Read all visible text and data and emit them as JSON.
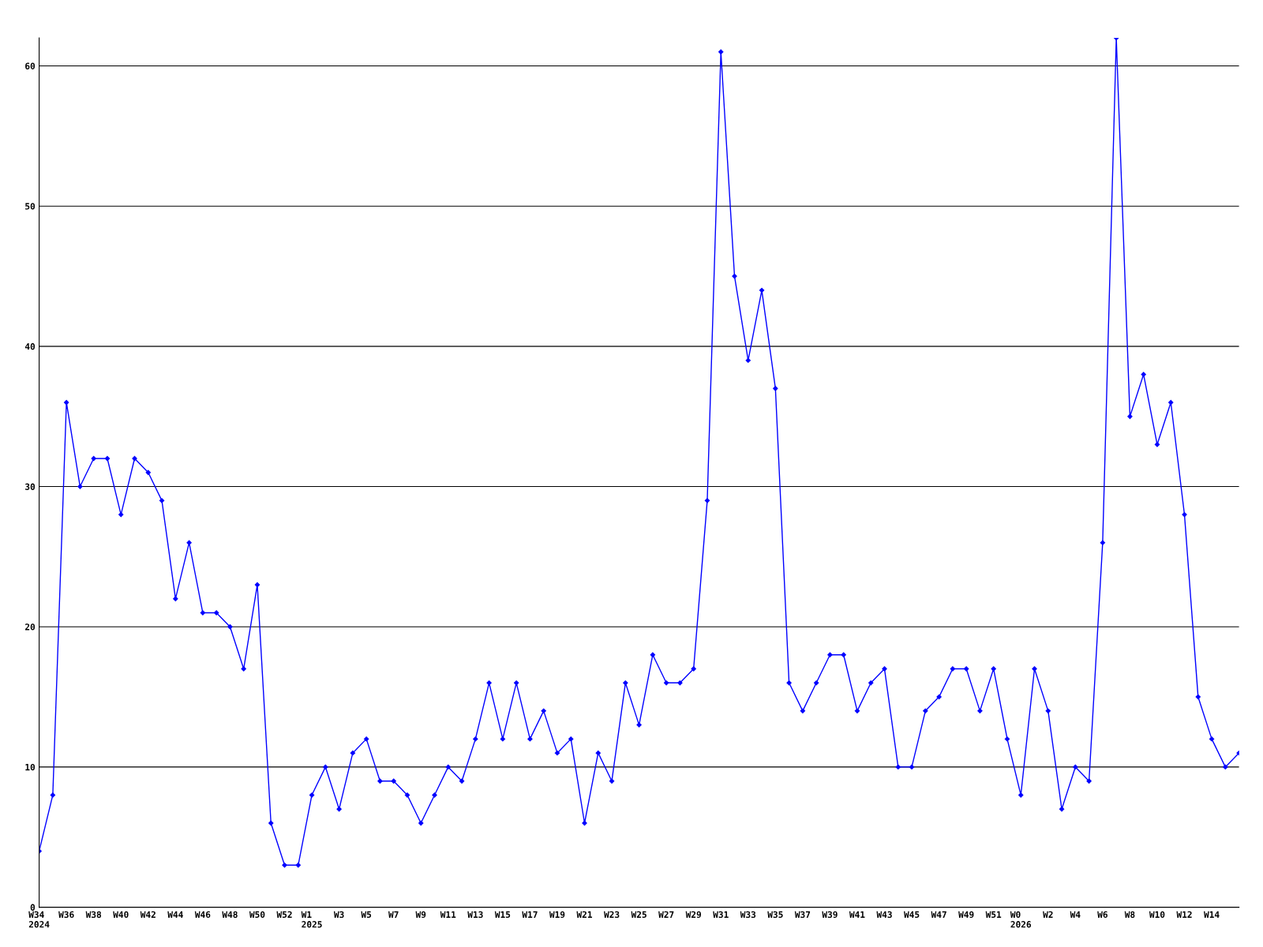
{
  "chart_data": {
    "type": "line",
    "categories": [
      "W34\n2024",
      null,
      "W36",
      null,
      "W38",
      null,
      "W40",
      null,
      "W42",
      null,
      "W44",
      null,
      "W46",
      null,
      "W48",
      null,
      "W50",
      null,
      "W52",
      null,
      "W1\n2025",
      null,
      "W3",
      null,
      "W5",
      null,
      "W7",
      null,
      "W9",
      null,
      "W11",
      null,
      "W13",
      null,
      "W15",
      null,
      "W17",
      null,
      "W19",
      null,
      "W21",
      null,
      "W23",
      null,
      "W25",
      null,
      "W27",
      null,
      "W29",
      null,
      "W31",
      null,
      "W33",
      null,
      "W35",
      null,
      "W37",
      null,
      "W39",
      null,
      "W41",
      null,
      "W43",
      null,
      "W45",
      null,
      "W47",
      null,
      "W49",
      null,
      "W51",
      null,
      "W0\n2026",
      null,
      "W2",
      null,
      "W4",
      null,
      "W6",
      null,
      "W8",
      null,
      "W10",
      null,
      "W12",
      null,
      "W14",
      null,
      null
    ],
    "series": [
      {
        "color": "#0000ff",
        "values": [
          4,
          8,
          36,
          30,
          32,
          32,
          28,
          32,
          31,
          29,
          22,
          26,
          21,
          21,
          20,
          17,
          23,
          6,
          3,
          3,
          8,
          10,
          7,
          11,
          12,
          9,
          9,
          8,
          6,
          8,
          10,
          9,
          12,
          16,
          12,
          16,
          12,
          14,
          11,
          12,
          6,
          11,
          9,
          16,
          13,
          18,
          16,
          16,
          17,
          29,
          61,
          45,
          39,
          44,
          37,
          16,
          14,
          16,
          18,
          18,
          14,
          16,
          17,
          10,
          10,
          14,
          15,
          17,
          17,
          14,
          17,
          12,
          8,
          17,
          14,
          7,
          10,
          9,
          26,
          62,
          35,
          38,
          33,
          36,
          28,
          15,
          12,
          10,
          11
        ]
      }
    ],
    "ylim": [
      0,
      62
    ],
    "yticks": [
      0,
      10,
      20,
      30,
      40,
      50,
      60
    ],
    "grid": "y",
    "marker": "diamond",
    "line_style": "solid",
    "legend": false
  }
}
